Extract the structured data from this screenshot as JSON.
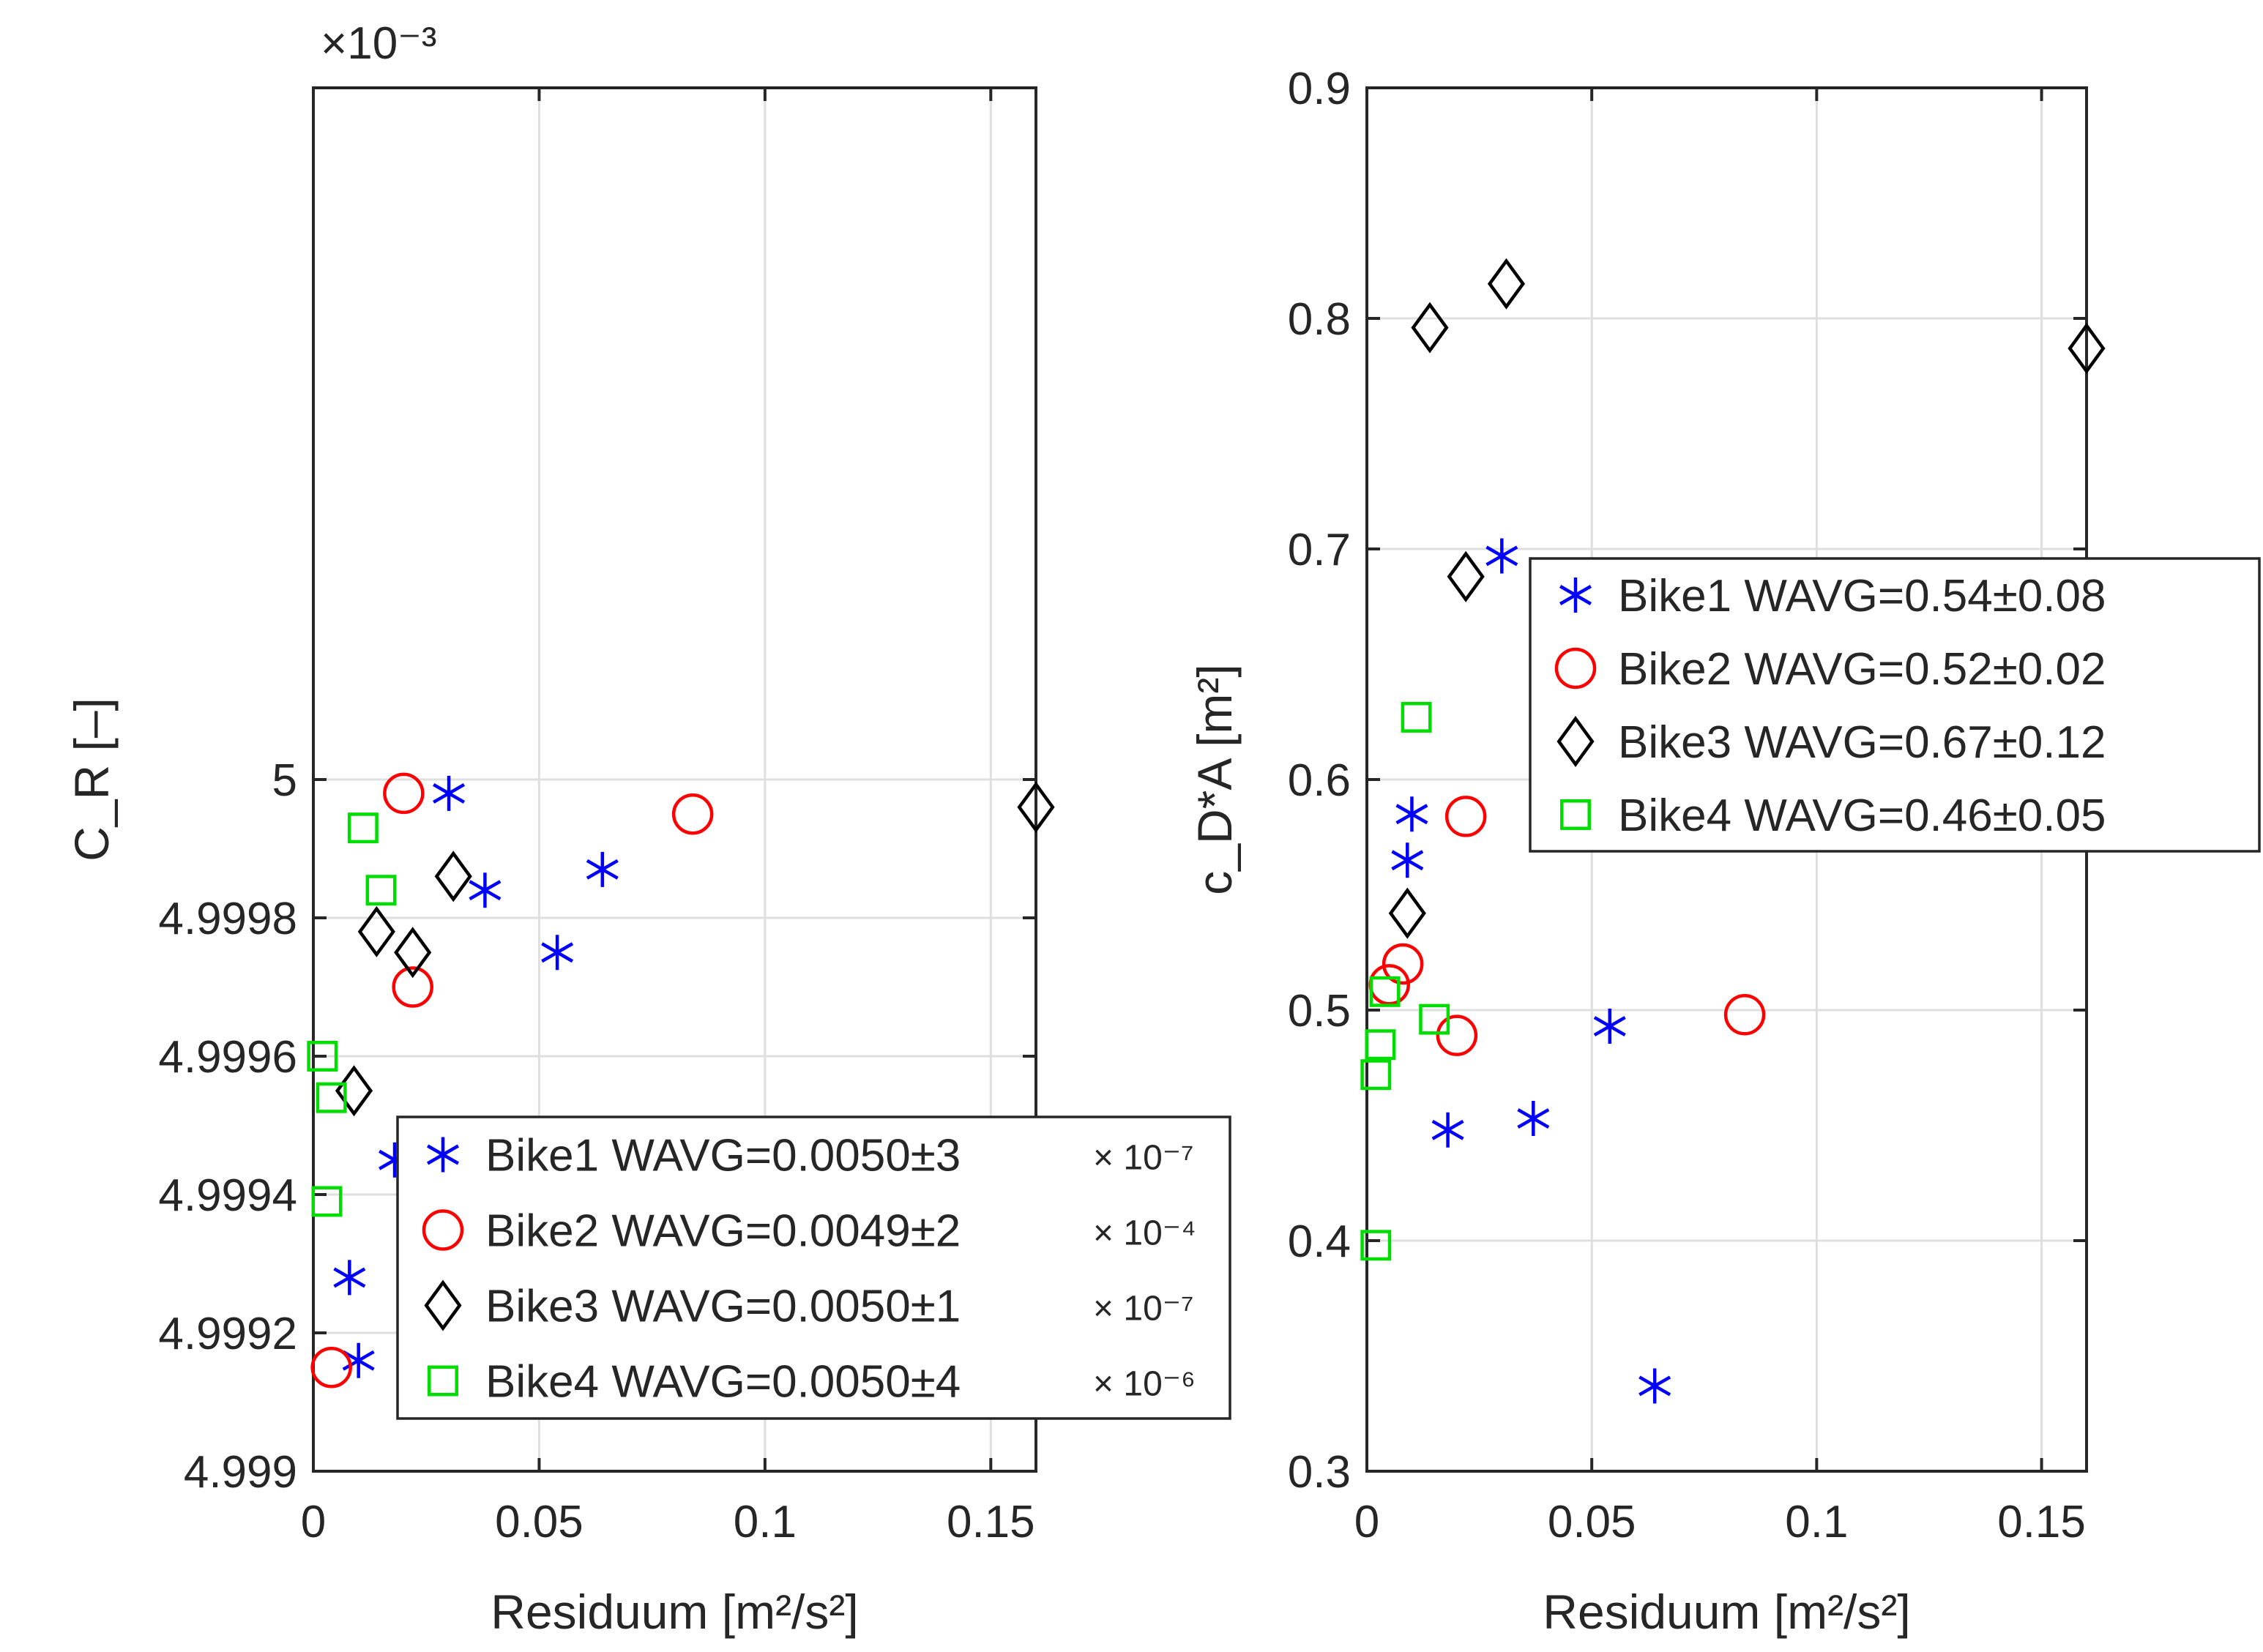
{
  "colors": {
    "Bike1": "#0000ff",
    "Bike2": "#ff0000",
    "Bike3": "#000000",
    "Bike4": "#00dd00"
  },
  "chart_data": [
    {
      "type": "scatter",
      "title": "",
      "xlabel": "Residuum [m²/s²]",
      "ylabel": "C_R [–]",
      "exponent_label": "×10⁻³",
      "xlim": [
        0,
        0.16
      ],
      "ylim": [
        4.999,
        5.001
      ],
      "x_ticks": [
        0,
        0.05,
        0.1,
        0.15
      ],
      "x_tick_labels": [
        "0",
        "0.05",
        "0.1",
        "0.15"
      ],
      "y_ticks": [
        4.999,
        4.9992,
        4.9994,
        4.9996,
        4.9998,
        5.0
      ],
      "y_tick_labels": [
        "4.999",
        "4.9992",
        "4.9994",
        "4.9996",
        "4.9998",
        "5"
      ],
      "grid": true,
      "legend_position": "bottom-right",
      "series": [
        {
          "name": "Bike1",
          "legend_label": "Bike1 WAVG=0.0050±3",
          "legend_exp": "× 10⁻⁷",
          "marker": "asterisk",
          "x": [
            0.03,
            0.038,
            0.064,
            0.054,
            0.018,
            0.008,
            0.01
          ],
          "y": [
            4.99998,
            4.99984,
            4.99987,
            4.99975,
            4.99945,
            4.99928,
            4.99916
          ]
        },
        {
          "name": "Bike2",
          "legend_label": "Bike2 WAVG=0.0049±2",
          "legend_exp": "× 10⁻⁴",
          "marker": "circle",
          "x": [
            0.02,
            0.084,
            0.022,
            0.004
          ],
          "y": [
            4.99998,
            4.99995,
            4.9997,
            4.99915
          ]
        },
        {
          "name": "Bike3",
          "legend_label": "Bike3 WAVG=0.0050±1",
          "legend_exp": "× 10⁻⁷",
          "marker": "diamond",
          "x": [
            0.16,
            0.031,
            0.014,
            0.022,
            0.009
          ],
          "y": [
            4.99996,
            4.99986,
            4.99978,
            4.99975,
            4.99955
          ]
        },
        {
          "name": "Bike4",
          "legend_label": "Bike4 WAVG=0.0050±4",
          "legend_exp": "× 10⁻⁶",
          "marker": "square",
          "x": [
            0.011,
            0.015,
            0.002,
            0.004,
            0.003
          ],
          "y": [
            4.99993,
            4.99984,
            4.9996,
            4.99954,
            4.99939
          ]
        }
      ]
    },
    {
      "type": "scatter",
      "title": "",
      "xlabel": "Residuum [m²/s²]",
      "ylabel": "c_D*A [m²]",
      "xlim": [
        0,
        0.16
      ],
      "ylim": [
        0.3,
        0.9
      ],
      "x_ticks": [
        0,
        0.05,
        0.1,
        0.15
      ],
      "x_tick_labels": [
        "0",
        "0.05",
        "0.1",
        "0.15"
      ],
      "y_ticks": [
        0.3,
        0.4,
        0.5,
        0.6,
        0.7,
        0.8,
        0.9
      ],
      "y_tick_labels": [
        "0.3",
        "0.4",
        "0.5",
        "0.6",
        "0.7",
        "0.8",
        "0.9"
      ],
      "grid": true,
      "legend_position": "top-right",
      "series": [
        {
          "name": "Bike1",
          "legend_label": "Bike1 WAVG=0.54±0.08",
          "marker": "asterisk",
          "x": [
            0.03,
            0.01,
            0.009,
            0.054,
            0.037,
            0.018,
            0.064
          ],
          "y": [
            0.697,
            0.585,
            0.565,
            0.493,
            0.453,
            0.448,
            0.337
          ]
        },
        {
          "name": "Bike2",
          "legend_label": "Bike2 WAVG=0.52±0.02",
          "marker": "circle",
          "x": [
            0.022,
            0.008,
            0.005,
            0.02,
            0.084
          ],
          "y": [
            0.584,
            0.52,
            0.511,
            0.489,
            0.498
          ]
        },
        {
          "name": "Bike3",
          "legend_label": "Bike3 WAVG=0.67±0.12",
          "marker": "diamond",
          "x": [
            0.031,
            0.014,
            0.16,
            0.022,
            0.009
          ],
          "y": [
            0.815,
            0.796,
            0.787,
            0.688,
            0.542
          ]
        },
        {
          "name": "Bike4",
          "legend_label": "Bike4 WAVG=0.46±0.05",
          "marker": "square",
          "x": [
            0.011,
            0.004,
            0.015,
            0.003,
            0.002,
            0.002
          ],
          "y": [
            0.627,
            0.508,
            0.496,
            0.485,
            0.472,
            0.398
          ]
        }
      ]
    }
  ]
}
